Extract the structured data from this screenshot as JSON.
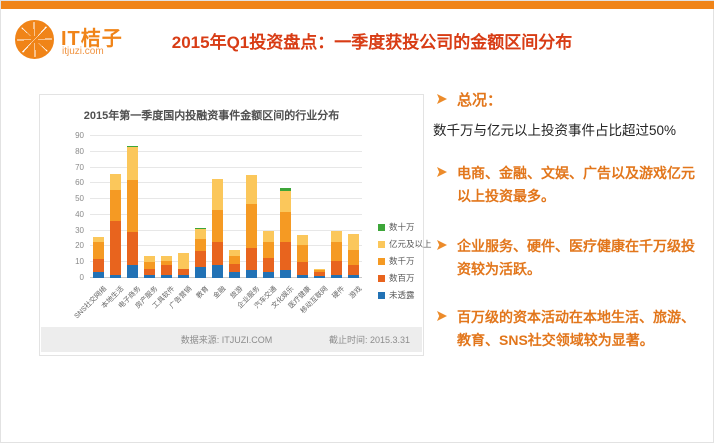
{
  "header": {
    "logo": {
      "name": "IT桔子",
      "domain": "itjuzi.com"
    },
    "title": "2015年Q1投资盘点：一季度获投公司的金额区间分布"
  },
  "chart_data": {
    "type": "bar",
    "stacked": true,
    "title": "2015年第一季度国内投融资事件金额区间的行业分布",
    "categories": [
      "SNS社交网络",
      "本地生活",
      "电子商务",
      "房产服务",
      "工具软件",
      "广告营销",
      "教育",
      "金融",
      "旅游",
      "企业服务",
      "汽车交通",
      "文化娱乐",
      "医疗健康",
      "移动互联网",
      "硬件",
      "游戏"
    ],
    "series": [
      {
        "name": "未透露",
        "color": "#2272b5",
        "values": [
          4,
          2,
          8,
          2,
          2,
          2,
          7,
          8,
          4,
          5,
          4,
          5,
          2,
          1,
          2,
          2
        ]
      },
      {
        "name": "数百万",
        "color": "#e8641e",
        "values": [
          8,
          34,
          21,
          4,
          6,
          4,
          10,
          15,
          5,
          14,
          9,
          18,
          8,
          3,
          9,
          6
        ]
      },
      {
        "name": "数千万",
        "color": "#f59a23",
        "values": [
          11,
          20,
          33,
          4,
          3,
          0,
          8,
          20,
          5,
          28,
          10,
          19,
          11,
          1,
          12,
          10
        ]
      },
      {
        "name": "亿元及以上",
        "color": "#fbc75b",
        "values": [
          3,
          10,
          21,
          4,
          3,
          10,
          6,
          20,
          4,
          18,
          7,
          13,
          6,
          1,
          7,
          10
        ]
      },
      {
        "name": "数十万",
        "color": "#3da639",
        "values": [
          0,
          0,
          1,
          0,
          0,
          0,
          1,
          0,
          0,
          0,
          0,
          2,
          0,
          0,
          0,
          0
        ]
      }
    ],
    "totals": [
      26,
      66,
      84,
      14,
      14,
      16,
      32,
      63,
      18,
      65,
      30,
      57,
      27,
      6,
      30,
      28
    ],
    "ylim": [
      0,
      90
    ],
    "ytick_step": 10,
    "grid": true,
    "legend_position": "right",
    "legend_order_top_to_bottom": [
      "数十万",
      "亿元及以上",
      "数千万",
      "数百万",
      "未透露"
    ]
  },
  "chart_footer": {
    "source": "数据来源: ITJUZI.COM",
    "deadline": "截止时间: 2015.3.31"
  },
  "insights": {
    "bullet1_heading": "总况：",
    "bullet1_text": "数千万与亿元以上投资事件占比超过50%",
    "bullet2": "电商、金融、文娱、广告以及游戏亿元以上投资最多。",
    "bullet3": "企业服务、硬件、医疗健康在千万级投资较为活跃。",
    "bullet4": "百万级的资本活动在本地生活、旅游、教育、SNS社交领域较为显著。"
  }
}
